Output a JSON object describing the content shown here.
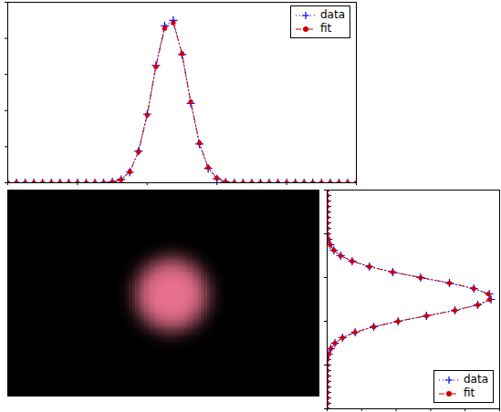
{
  "chart_data": [
    {
      "type": "line",
      "x": [
        0,
        2.5,
        5,
        7.5,
        10,
        12.5,
        15,
        17.5,
        20,
        22.5,
        25,
        27.5,
        30,
        32.5,
        35,
        37.5,
        40,
        42.5,
        45,
        47.5,
        50,
        52.5,
        55,
        57.5,
        60,
        62.5,
        65,
        67.5,
        70,
        72.5,
        75,
        77.5,
        80,
        82.5,
        85,
        87.5,
        90,
        92.5,
        95,
        97.5,
        100
      ],
      "series": [
        {
          "name": "data",
          "color": "#0000ff",
          "marker": "plus",
          "line_style": "dotted",
          "values": [
            0,
            0,
            0,
            0,
            0,
            0,
            0,
            0,
            0,
            0,
            0,
            0,
            0.005,
            0.018,
            0.058,
            0.175,
            0.38,
            0.65,
            0.87,
            0.9,
            0.71,
            0.44,
            0.215,
            0.08,
            0.022,
            0.004,
            0,
            0,
            0,
            0,
            0,
            0,
            0,
            0,
            0,
            0,
            0,
            0,
            0,
            0,
            0
          ]
        },
        {
          "name": "fit",
          "color": "#cc0000",
          "marker": "circle",
          "line_style": "dashdot",
          "values": [
            0,
            0,
            0,
            0,
            0,
            0,
            0,
            0,
            0,
            0,
            0,
            0,
            0.004,
            0.017,
            0.061,
            0.172,
            0.376,
            0.643,
            0.855,
            0.886,
            0.715,
            0.449,
            0.22,
            0.084,
            0.025,
            0.005,
            0,
            0,
            0,
            0,
            0,
            0,
            0,
            0,
            0,
            0,
            0,
            0,
            0,
            0,
            0
          ]
        }
      ],
      "xlim": [
        0,
        100
      ],
      "ylim": [
        0,
        1
      ],
      "xticks": [
        0,
        20,
        40,
        60,
        80,
        100
      ],
      "yticks": [
        0,
        0.2,
        0.4,
        0.6,
        0.8,
        1
      ],
      "tick_labels": false,
      "legend": "upper right"
    },
    {
      "type": "image",
      "xlim": [
        0,
        100
      ],
      "ylim": [
        0,
        100
      ],
      "spot": {
        "x": 52.6,
        "y": 49.3,
        "rx": 11,
        "ry": 16.7
      },
      "color": "#e8708c",
      "tick_labels": false
    },
    {
      "type": "line",
      "orientation": "horizontal",
      "x": [
        0,
        2.5,
        5,
        7.5,
        10,
        12.5,
        15,
        17.5,
        20,
        22.5,
        25,
        27.5,
        30,
        32.5,
        35,
        37.5,
        40,
        42.5,
        45,
        47.5,
        50,
        52.5,
        55,
        57.5,
        60,
        62.5,
        65,
        67.5,
        70,
        72.5,
        75,
        77.5,
        80,
        82.5,
        85,
        87.5,
        90,
        92.5,
        95,
        97.5,
        100
      ],
      "series": [
        {
          "name": "data",
          "color": "#0000ff",
          "marker": "plus",
          "line_style": "dotted",
          "values": [
            0,
            0,
            0,
            0,
            0,
            0,
            0,
            0,
            0,
            0,
            0.009,
            0.021,
            0.045,
            0.089,
            0.162,
            0.27,
            0.411,
            0.576,
            0.741,
            0.873,
            0.95,
            0.94,
            0.85,
            0.709,
            0.542,
            0.38,
            0.245,
            0.145,
            0.078,
            0.039,
            0.018,
            0.007,
            0,
            0,
            0,
            0,
            0,
            0,
            0,
            0,
            0
          ]
        },
        {
          "name": "fit",
          "color": "#cc0000",
          "marker": "circle",
          "line_style": "dashdot",
          "values": [
            0,
            0,
            0,
            0,
            0,
            0,
            0,
            0,
            0,
            0,
            0.009,
            0.021,
            0.045,
            0.089,
            0.162,
            0.27,
            0.411,
            0.576,
            0.741,
            0.873,
            0.943,
            0.935,
            0.85,
            0.709,
            0.542,
            0.38,
            0.245,
            0.145,
            0.078,
            0.039,
            0.018,
            0.007,
            0,
            0,
            0,
            0,
            0,
            0,
            0,
            0,
            0
          ]
        }
      ],
      "xlim": [
        0,
        100
      ],
      "ylim": [
        0,
        1
      ],
      "xticks": [
        0,
        20,
        40,
        60,
        80,
        100
      ],
      "yticks": [
        0,
        0.2,
        0.4,
        0.6,
        0.8,
        1
      ],
      "tick_labels": false,
      "legend": "lower right"
    }
  ]
}
